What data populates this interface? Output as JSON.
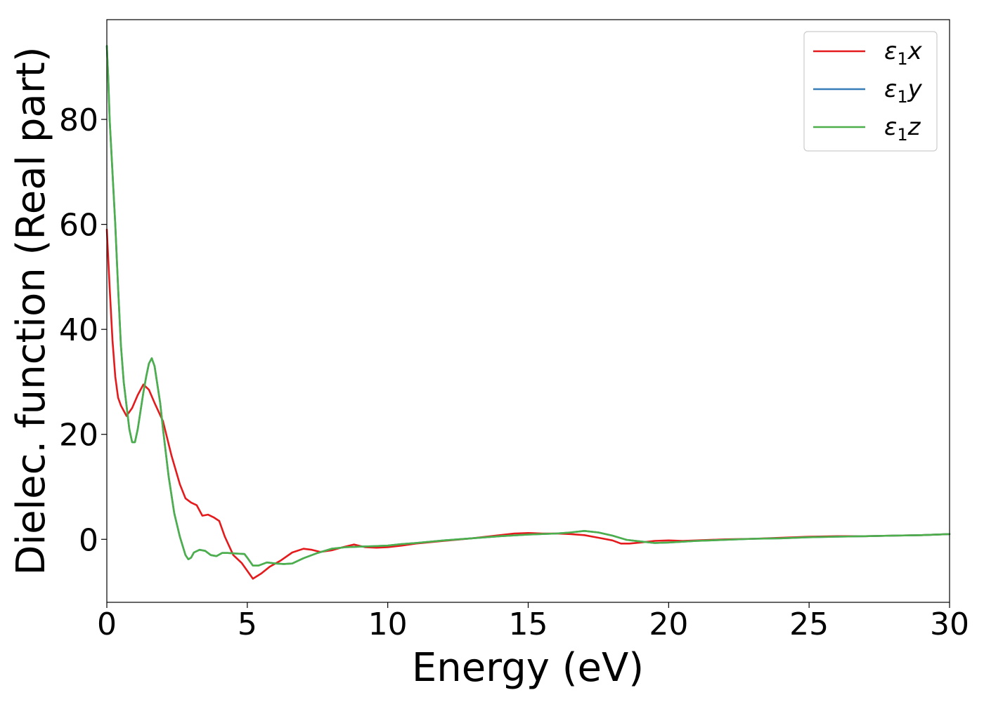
{
  "chart_data": {
    "type": "line",
    "xlabel": "Energy (eV)",
    "ylabel": "Dielec. function (Real part)",
    "xlim": [
      0,
      30
    ],
    "ylim": [
      -12,
      99
    ],
    "xticks": [
      0,
      5,
      10,
      15,
      20,
      25,
      30
    ],
    "yticks": [
      0,
      20,
      40,
      60,
      80
    ],
    "grid": false,
    "legend": "top-right",
    "series": [
      {
        "name": "ε1x",
        "legend_main": "ε",
        "legend_sub": "1",
        "legend_tail": "x",
        "color": "#e41a1c",
        "x": [
          0,
          0.1,
          0.2,
          0.3,
          0.4,
          0.5,
          0.7,
          0.9,
          1.1,
          1.3,
          1.5,
          1.7,
          2.0,
          2.3,
          2.6,
          2.8,
          3.0,
          3.2,
          3.4,
          3.6,
          3.8,
          4.0,
          4.2,
          4.5,
          4.8,
          5.0,
          5.2,
          5.5,
          5.8,
          6.2,
          6.6,
          7.0,
          7.3,
          7.6,
          8.0,
          8.4,
          8.8,
          9.2,
          9.6,
          10.0,
          10.5,
          11.0,
          12.0,
          13.0,
          14.0,
          14.5,
          15.0,
          15.5,
          16.0,
          16.5,
          17.0,
          17.5,
          18.0,
          18.3,
          18.6,
          19.0,
          19.5,
          20.0,
          20.5,
          21.0,
          22.0,
          23.0,
          24.0,
          25.0,
          26.0,
          27.0,
          28.0,
          29.0,
          30.0
        ],
        "y": [
          59,
          48,
          38,
          31,
          27,
          25.5,
          23.5,
          25,
          27.5,
          29.5,
          28.5,
          26,
          22.5,
          16,
          10.5,
          7.8,
          7,
          6.5,
          4.5,
          4.7,
          4.2,
          3.5,
          0.5,
          -3,
          -4.5,
          -6,
          -7.5,
          -6.5,
          -5.2,
          -4,
          -2.5,
          -1.8,
          -2,
          -2.4,
          -2.1,
          -1.5,
          -1,
          -1.5,
          -1.6,
          -1.5,
          -1.2,
          -0.8,
          -0.3,
          0.2,
          0.8,
          1.1,
          1.2,
          1.1,
          1.1,
          1.0,
          0.8,
          0.3,
          -0.2,
          -0.8,
          -0.8,
          -0.6,
          -0.3,
          -0.2,
          -0.3,
          -0.2,
          0,
          0.1,
          0.3,
          0.5,
          0.6,
          0.6,
          0.7,
          0.8,
          1.0
        ]
      },
      {
        "name": "ε1y",
        "legend_main": "ε",
        "legend_sub": "1",
        "legend_tail": "y",
        "color": "#377eb8",
        "x": [
          0,
          0.05,
          0.1,
          0.2,
          0.3,
          0.4,
          0.5,
          0.6,
          0.7,
          0.8,
          0.9,
          1.0,
          1.1,
          1.2,
          1.3,
          1.4,
          1.5,
          1.6,
          1.7,
          1.8,
          1.9,
          2.0,
          2.2,
          2.4,
          2.6,
          2.8,
          2.9,
          3.0,
          3.1,
          3.3,
          3.5,
          3.7,
          3.9,
          4.1,
          4.3,
          4.6,
          4.9,
          5.0,
          5.2,
          5.4,
          5.7,
          6.0,
          6.3,
          6.6,
          7.0,
          7.5,
          8.0,
          8.5,
          9.0,
          9.5,
          10.0,
          10.5,
          11.0,
          12.0,
          13.0,
          14.0,
          15.0,
          16.0,
          16.5,
          17.0,
          17.5,
          18.0,
          18.5,
          19.0,
          19.5,
          20.0,
          21.0,
          22.0,
          23.0,
          24.0,
          25.0,
          26.0,
          27.0,
          28.0,
          29.0,
          30.0
        ],
        "y": [
          94,
          88,
          80,
          70,
          60,
          48,
          37,
          30,
          25.5,
          21,
          18.5,
          18.5,
          21,
          24.5,
          28,
          31,
          33.5,
          34.5,
          33,
          29.5,
          26,
          21,
          12,
          5,
          0.5,
          -3,
          -3.8,
          -3.5,
          -2.5,
          -2,
          -2.2,
          -3,
          -3.2,
          -2.6,
          -2.6,
          -2.7,
          -2.8,
          -3.5,
          -5,
          -5,
          -4.4,
          -4.6,
          -4.7,
          -4.6,
          -3.6,
          -2.6,
          -1.8,
          -1.5,
          -1.4,
          -1.3,
          -1.2,
          -0.9,
          -0.7,
          -0.2,
          0.2,
          0.6,
          0.9,
          1.1,
          1.3,
          1.6,
          1.3,
          0.7,
          -0.1,
          -0.4,
          -0.7,
          -0.6,
          -0.3,
          -0.1,
          0.1,
          0.2,
          0.4,
          0.5,
          0.6,
          0.7,
          0.8,
          1.0
        ]
      },
      {
        "name": "ε1z",
        "legend_main": "ε",
        "legend_sub": "1",
        "legend_tail": "z",
        "color": "#4daf4a",
        "x": [
          0,
          0.05,
          0.1,
          0.2,
          0.3,
          0.4,
          0.5,
          0.6,
          0.7,
          0.8,
          0.9,
          1.0,
          1.1,
          1.2,
          1.3,
          1.4,
          1.5,
          1.6,
          1.7,
          1.8,
          1.9,
          2.0,
          2.2,
          2.4,
          2.6,
          2.8,
          2.9,
          3.0,
          3.1,
          3.3,
          3.5,
          3.7,
          3.9,
          4.1,
          4.3,
          4.6,
          4.9,
          5.0,
          5.2,
          5.4,
          5.7,
          6.0,
          6.3,
          6.6,
          7.0,
          7.5,
          8.0,
          8.5,
          9.0,
          9.5,
          10.0,
          10.5,
          11.0,
          12.0,
          13.0,
          14.0,
          15.0,
          16.0,
          16.5,
          17.0,
          17.5,
          18.0,
          18.5,
          19.0,
          19.5,
          20.0,
          21.0,
          22.0,
          23.0,
          24.0,
          25.0,
          26.0,
          27.0,
          28.0,
          29.0,
          30.0
        ],
        "y": [
          94,
          88,
          80,
          70,
          60,
          48,
          37,
          30,
          25.5,
          21,
          18.5,
          18.5,
          21,
          24.5,
          28,
          31,
          33.5,
          34.5,
          33,
          29.5,
          26,
          21,
          12,
          5,
          0.5,
          -3,
          -3.8,
          -3.5,
          -2.5,
          -2,
          -2.2,
          -3,
          -3.2,
          -2.6,
          -2.6,
          -2.7,
          -2.8,
          -3.5,
          -5,
          -5,
          -4.4,
          -4.6,
          -4.7,
          -4.6,
          -3.6,
          -2.6,
          -1.8,
          -1.5,
          -1.4,
          -1.3,
          -1.2,
          -0.9,
          -0.7,
          -0.2,
          0.2,
          0.6,
          0.9,
          1.1,
          1.3,
          1.6,
          1.3,
          0.7,
          -0.1,
          -0.4,
          -0.7,
          -0.6,
          -0.3,
          -0.1,
          0.1,
          0.2,
          0.4,
          0.5,
          0.6,
          0.7,
          0.8,
          1.0
        ]
      }
    ]
  }
}
